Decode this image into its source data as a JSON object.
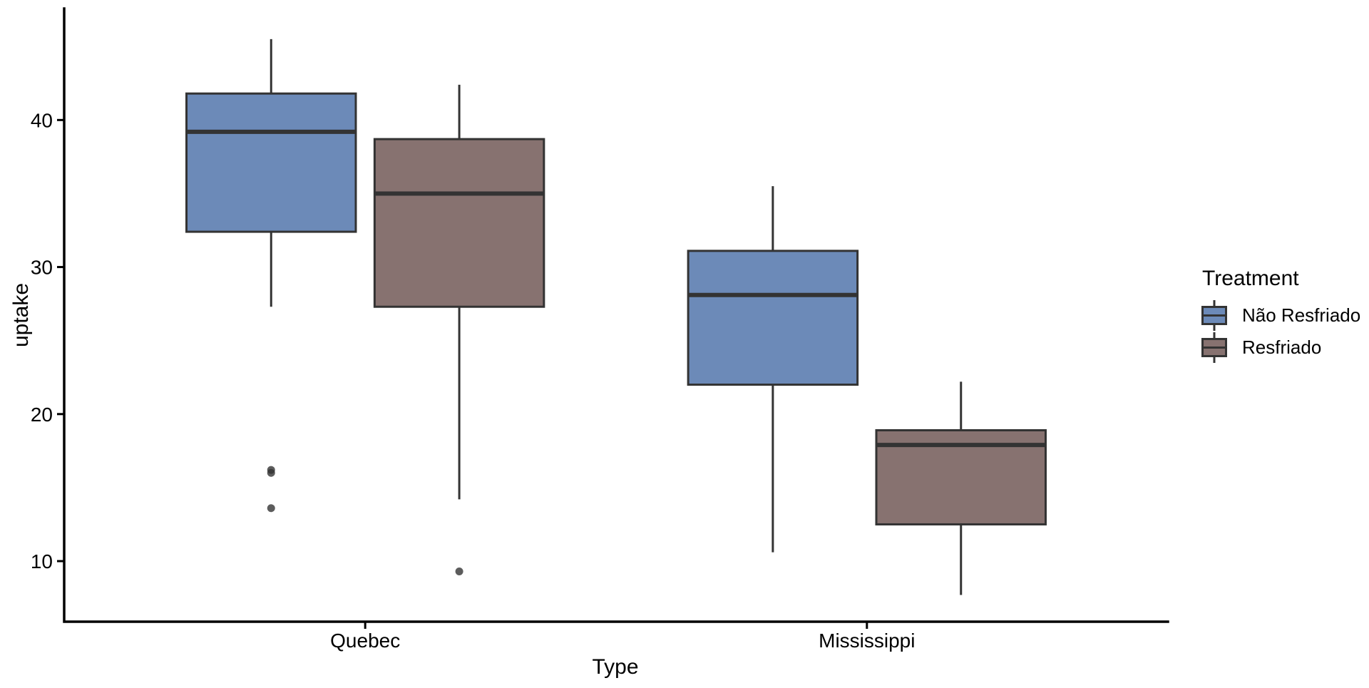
{
  "chart_data": {
    "type": "boxplot",
    "title": "",
    "xlabel": "Type",
    "ylabel": "uptake",
    "categories": [
      "Quebec",
      "Mississippi"
    ],
    "yticks": [
      10,
      20,
      30,
      40
    ],
    "ylim": [
      5.88,
      47.58
    ],
    "grid": "off",
    "legend": {
      "title": "Treatment",
      "position": "right",
      "entries": [
        {
          "label": "Não Resfriado",
          "color": "#6C8AB8"
        },
        {
          "label": "Resfriado",
          "color": "#877270"
        }
      ]
    },
    "boxes": [
      {
        "category": "Quebec",
        "series": "Não Resfriado",
        "whisker_low": 27.3,
        "q1": 32.4,
        "median": 39.2,
        "q3": 41.8,
        "whisker_high": 45.5,
        "outliers": [
          16.2,
          16.0,
          13.6
        ]
      },
      {
        "category": "Quebec",
        "series": "Resfriado",
        "whisker_low": 14.2,
        "q1": 27.3,
        "median": 35.0,
        "q3": 38.7,
        "whisker_high": 42.4,
        "outliers": [
          9.3
        ]
      },
      {
        "category": "Mississippi",
        "series": "Não Resfriado",
        "whisker_low": 10.6,
        "q1": 22.0,
        "median": 28.1,
        "q3": 31.1,
        "whisker_high": 35.5,
        "outliers": []
      },
      {
        "category": "Mississippi",
        "series": "Resfriado",
        "whisker_low": 7.7,
        "q1": 12.5,
        "median": 17.9,
        "q3": 18.9,
        "whisker_high": 22.2,
        "outliers": []
      }
    ],
    "style": {
      "box_border_color": "#333333",
      "median_color": "#333333",
      "whisker_color": "#333333",
      "outlier_color": "#333333",
      "axis_color": "#000000",
      "text_color": "#000000",
      "background": "#FFFFFF"
    }
  }
}
